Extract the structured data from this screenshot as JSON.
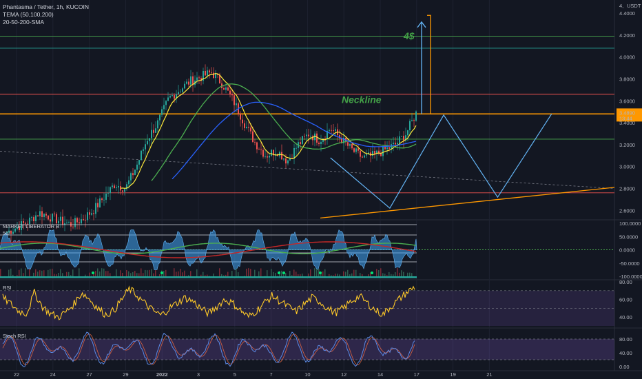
{
  "header": {
    "symbol_line": "Phantasma / Tether, 1h, KUCOIN",
    "indicator1": "TEMA (50,100,200)",
    "indicator2": "20-50-200-SMA",
    "currency": "USDT"
  },
  "price_badge": {
    "price": "3.4890",
    "time": "13:44",
    "color": "#ff9800"
  },
  "annotations": {
    "neckline": "Neckline",
    "target": "4$"
  },
  "panes": {
    "market_liberator": "MARKET LIBERATOR B",
    "market_liberator_sub": "50/",
    "rsi": "RSI",
    "stoch_rsi": "Stoch RSI"
  },
  "colors": {
    "background": "#131722",
    "orange": "#ff9800",
    "blue_line": "#2962ff",
    "green_line": "#4caf50",
    "yellow_line": "#ffeb3b",
    "red_line": "#e53935",
    "light_blue": "#64b5f6",
    "neckline_text": "#43a047"
  },
  "chart_data": [
    {
      "type": "candlestick",
      "pane": "price",
      "ylim": [
        2.52,
        4.52
      ],
      "y_ticks": [
        "4.4000",
        "4.2000",
        "4.0000",
        "3.8000",
        "3.6000",
        "3.4000",
        "3.2000",
        "3.0000",
        "2.8000",
        "2.6000"
      ],
      "x_ticks": [
        "22",
        "24",
        "27",
        "29",
        "2022",
        "3",
        "5",
        "7",
        "10",
        "12",
        "14",
        "17",
        "19",
        "21"
      ],
      "close_path": [
        2.4,
        2.45,
        2.5,
        2.58,
        2.54,
        2.5,
        2.47,
        2.52,
        2.6,
        2.72,
        2.84,
        2.8,
        3.0,
        3.25,
        3.4,
        3.62,
        3.7,
        3.78,
        3.82,
        3.86,
        3.75,
        3.6,
        3.4,
        3.22,
        3.1,
        3.15,
        3.05,
        3.2,
        3.3,
        3.24,
        3.35,
        3.25,
        3.15,
        3.08,
        3.1,
        3.15,
        3.2,
        3.3,
        3.5
      ],
      "horizontal_levels": [
        {
          "price": 4.19,
          "color": "#4caf50"
        },
        {
          "price": 4.08,
          "color": "#26a69a"
        },
        {
          "price": 3.66,
          "color": "#ef5350"
        },
        {
          "price": 3.48,
          "color": "#ff9800"
        },
        {
          "price": 3.25,
          "color": "#4caf50"
        },
        {
          "price": 2.76,
          "color": "#ef5350"
        }
      ],
      "pattern_points": [
        [
          30.0,
          3.08
        ],
        [
          35.5,
          2.62
        ],
        [
          40.5,
          3.47
        ],
        [
          45.5,
          2.72
        ],
        [
          50.5,
          3.48
        ]
      ],
      "target_price": 4.32
    },
    {
      "type": "line",
      "pane": "market_liberator",
      "ylim": [
        -100,
        100
      ],
      "y_ticks": [
        "100.0000",
        "50.0000",
        "0.0000",
        "-50.0000",
        "-100.0000"
      ]
    },
    {
      "type": "line",
      "pane": "rsi",
      "ylim": [
        30,
        80
      ],
      "y_ticks": [
        "80.00",
        "60.00",
        "40.00"
      ],
      "series": [
        {
          "values": [
            62,
            55,
            47,
            44,
            68,
            52,
            44,
            40,
            46,
            55,
            68,
            60,
            50,
            43,
            47,
            60,
            72,
            64,
            55,
            47,
            42,
            50,
            56,
            62,
            58,
            50,
            44,
            52,
            60,
            56,
            48,
            40,
            47,
            56,
            64,
            58,
            52,
            46,
            54,
            62,
            58,
            50,
            45,
            50,
            58,
            64,
            56,
            48,
            43,
            52,
            60,
            68,
            74
          ]
        }
      ]
    },
    {
      "type": "line",
      "pane": "stoch_rsi",
      "ylim": [
        -10,
        110
      ],
      "y_ticks": [
        "80.00",
        "40.00",
        "0.00"
      ]
    }
  ]
}
